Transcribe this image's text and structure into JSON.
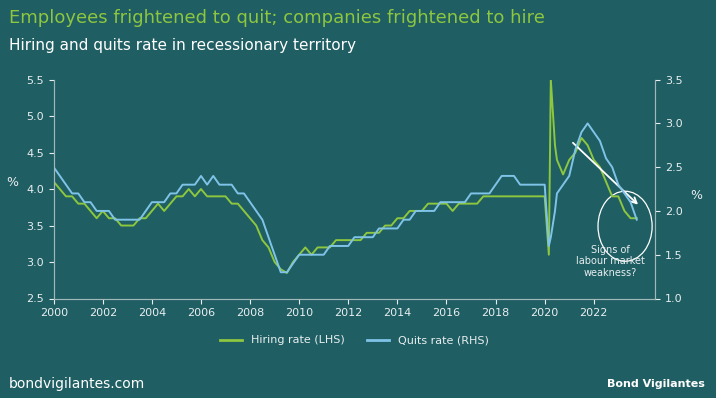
{
  "chart_data": {
    "type": "line",
    "title": "Employees frightened to quit; companies frightened to hire",
    "subtitle": "Hiring and quits rate in recessionary territory",
    "y_label": "%",
    "y2_label": "%",
    "annotation": "Signs of\nlabour market\nweakness?",
    "source": "bondvigilantes.com",
    "logo_text": "Bond Vigilantes",
    "legend": "lower center",
    "grid": false,
    "x": [
      2000,
      2000.25,
      2000.5,
      2000.75,
      2001,
      2001.25,
      2001.5,
      2001.75,
      2002,
      2002.25,
      2002.5,
      2002.75,
      2003,
      2003.25,
      2003.5,
      2003.75,
      2004,
      2004.25,
      2004.5,
      2004.75,
      2005,
      2005.25,
      2005.5,
      2005.75,
      2006,
      2006.25,
      2006.5,
      2006.75,
      2007,
      2007.25,
      2007.5,
      2007.75,
      2008,
      2008.25,
      2008.5,
      2008.75,
      2009,
      2009.25,
      2009.5,
      2009.75,
      2010,
      2010.25,
      2010.5,
      2010.75,
      2011,
      2011.25,
      2011.5,
      2011.75,
      2012,
      2012.25,
      2012.5,
      2012.75,
      2013,
      2013.25,
      2013.5,
      2013.75,
      2014,
      2014.25,
      2014.5,
      2014.75,
      2015,
      2015.25,
      2015.5,
      2015.75,
      2016,
      2016.25,
      2016.5,
      2016.75,
      2017,
      2017.25,
      2017.5,
      2017.75,
      2018,
      2018.25,
      2018.5,
      2018.75,
      2019,
      2019.25,
      2019.5,
      2019.75,
      2020,
      2020.17,
      2020.25,
      2020.42,
      2020.5,
      2020.75,
      2021,
      2021.25,
      2021.5,
      2021.75,
      2022,
      2022.25,
      2022.5,
      2022.75,
      2023,
      2023.25,
      2023.5,
      2023.75
    ],
    "series": [
      {
        "name": "Hiring rate (LHS)",
        "color": "#8dc63f",
        "axis": "y",
        "values": [
          4.1,
          4.0,
          3.9,
          3.9,
          3.8,
          3.8,
          3.7,
          3.6,
          3.7,
          3.6,
          3.6,
          3.5,
          3.5,
          3.5,
          3.6,
          3.6,
          3.7,
          3.8,
          3.7,
          3.8,
          3.9,
          3.9,
          4.0,
          3.9,
          4.0,
          3.9,
          3.9,
          3.9,
          3.9,
          3.8,
          3.8,
          3.7,
          3.6,
          3.5,
          3.3,
          3.2,
          3.0,
          2.9,
          2.85,
          3.0,
          3.1,
          3.2,
          3.1,
          3.2,
          3.2,
          3.2,
          3.3,
          3.3,
          3.3,
          3.3,
          3.3,
          3.4,
          3.4,
          3.4,
          3.5,
          3.5,
          3.6,
          3.6,
          3.7,
          3.7,
          3.7,
          3.8,
          3.8,
          3.8,
          3.8,
          3.7,
          3.8,
          3.8,
          3.8,
          3.8,
          3.9,
          3.9,
          3.9,
          3.9,
          3.9,
          3.9,
          3.9,
          3.9,
          3.9,
          3.9,
          3.9,
          3.1,
          5.5,
          4.6,
          4.4,
          4.2,
          4.4,
          4.5,
          4.7,
          4.6,
          4.4,
          4.3,
          4.1,
          3.9,
          3.9,
          3.7,
          3.6,
          3.6
        ]
      },
      {
        "name": "Quits rate (RHS)",
        "color": "#7fc4e8",
        "axis": "y2",
        "values": [
          2.5,
          2.4,
          2.3,
          2.2,
          2.2,
          2.1,
          2.1,
          2.0,
          2.0,
          2.0,
          1.9,
          1.9,
          1.9,
          1.9,
          1.9,
          2.0,
          2.1,
          2.1,
          2.1,
          2.2,
          2.2,
          2.3,
          2.3,
          2.3,
          2.4,
          2.3,
          2.4,
          2.3,
          2.3,
          2.3,
          2.2,
          2.2,
          2.1,
          2.0,
          1.9,
          1.7,
          1.5,
          1.3,
          1.3,
          1.4,
          1.5,
          1.5,
          1.5,
          1.5,
          1.5,
          1.6,
          1.6,
          1.6,
          1.6,
          1.7,
          1.7,
          1.7,
          1.7,
          1.8,
          1.8,
          1.8,
          1.8,
          1.9,
          1.9,
          2.0,
          2.0,
          2.0,
          2.0,
          2.1,
          2.1,
          2.1,
          2.1,
          2.1,
          2.2,
          2.2,
          2.2,
          2.2,
          2.3,
          2.4,
          2.4,
          2.4,
          2.3,
          2.3,
          2.3,
          2.3,
          2.3,
          1.6,
          1.7,
          2.0,
          2.2,
          2.3,
          2.4,
          2.7,
          2.9,
          3.0,
          2.9,
          2.8,
          2.6,
          2.5,
          2.3,
          2.2,
          2.1,
          1.9
        ]
      }
    ],
    "xlim": [
      2000,
      2024.5
    ],
    "xticks": [
      2000,
      2002,
      2004,
      2006,
      2008,
      2010,
      2012,
      2014,
      2016,
      2018,
      2020,
      2022
    ],
    "ylim": [
      2.5,
      5.5
    ],
    "yticks": [
      {
        "value": 2.5,
        "label": "2.5"
      },
      {
        "value": 3,
        "label": "3.0"
      },
      {
        "value": 3.5,
        "label": "3.5"
      },
      {
        "value": 4,
        "label": "4.0"
      },
      {
        "value": 4.5,
        "label": "4.5"
      },
      {
        "value": 5,
        "label": "5.0"
      },
      {
        "value": 5.5,
        "label": "5.5"
      }
    ],
    "y2lim": [
      1.0,
      3.5
    ],
    "y2ticks": [
      {
        "value": 1,
        "label": "1.0"
      },
      {
        "value": 1.5,
        "label": "1.5"
      },
      {
        "value": 2,
        "label": "2.0"
      },
      {
        "value": 2.5,
        "label": "2.5"
      },
      {
        "value": 3,
        "label": "3.0"
      },
      {
        "value": 3.5,
        "label": "3.5"
      }
    ]
  }
}
